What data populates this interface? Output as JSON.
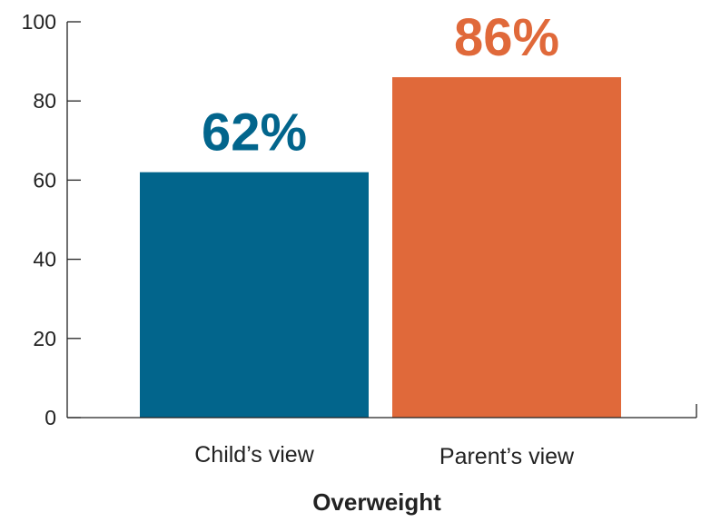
{
  "chart_data": {
    "type": "bar",
    "categories": [
      "Child’s view",
      "Parent’s view"
    ],
    "values": [
      62,
      86
    ],
    "value_labels": [
      "62%",
      "86%"
    ],
    "colors": [
      "#02658c",
      "#e0693a"
    ],
    "ylim": [
      0,
      100
    ],
    "yticks": [
      0,
      20,
      40,
      60,
      80,
      100
    ],
    "xlabel": "Overweight",
    "grid": false,
    "legend": false
  }
}
